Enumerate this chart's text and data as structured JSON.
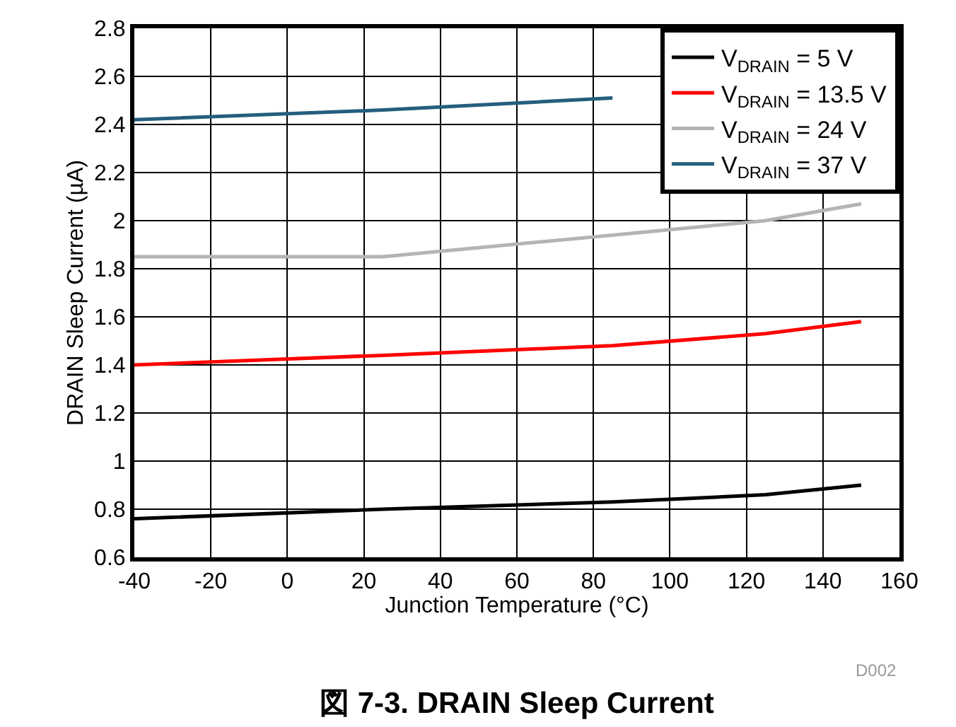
{
  "chart_data": {
    "type": "line",
    "title": "図 7-3. DRAIN Sleep Current",
    "xlabel": "Junction Temperature (°C)",
    "ylabel": "DRAIN Sleep Current (µA)",
    "x": [
      -40,
      25,
      85,
      125,
      150
    ],
    "series": [
      {
        "name": "V$_{DRAIN}$ = 5 V",
        "color": "#000000",
        "values": [
          0.76,
          0.8,
          0.83,
          0.86,
          0.9
        ]
      },
      {
        "name": "V$_{DRAIN}$ = 13.5 V",
        "color": "#ff0000",
        "values": [
          1.4,
          1.44,
          1.48,
          1.53,
          1.58
        ]
      },
      {
        "name": "V$_{DRAIN}$ = 24 V",
        "color": "#b4b4b4",
        "values": [
          1.85,
          1.85,
          1.94,
          2.0,
          2.07
        ]
      },
      {
        "name": "V$_{DRAIN}$ = 37 V",
        "color": "#255e7e",
        "values": [
          2.42,
          2.46,
          2.51,
          null,
          null
        ]
      }
    ],
    "xlim": [
      -40,
      160
    ],
    "xticks": [
      -40,
      -20,
      0,
      20,
      40,
      60,
      80,
      100,
      120,
      140,
      160
    ],
    "ylim": [
      0.6,
      2.8
    ],
    "yticks": [
      0.6,
      0.8,
      1,
      1.2,
      1.4,
      1.6,
      1.8,
      2,
      2.2,
      2.4,
      2.6,
      2.8
    ],
    "grid": true,
    "legend": "top right",
    "marker": "none",
    "line_style": "solid",
    "annotations": [
      "D002"
    ]
  }
}
